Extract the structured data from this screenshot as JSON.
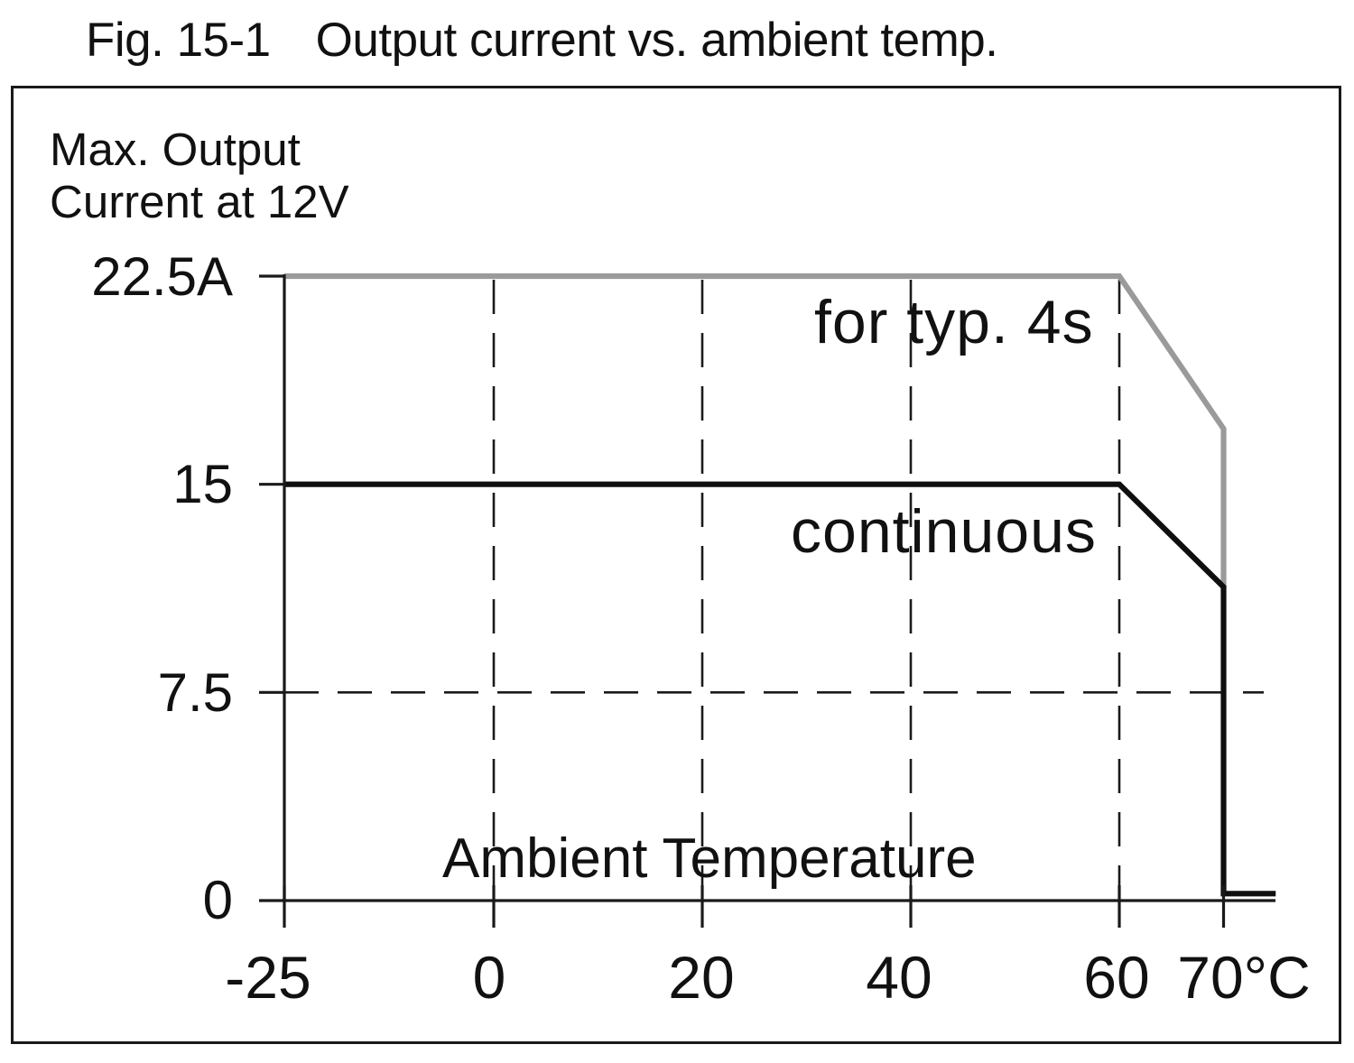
{
  "title": {
    "fig_label": "Fig. 15-1",
    "text": "Output current vs. ambient temp."
  },
  "y_axis": {
    "label_line1": "Max. Output",
    "label_line2": "Current at 12V",
    "tick_labels": [
      "22.5A",
      "15",
      "7.5",
      "0"
    ]
  },
  "x_axis": {
    "label": "Ambient Temperature",
    "tick_labels": [
      "-25",
      "0",
      "20",
      "40",
      "60",
      "70°C"
    ]
  },
  "curve_labels": {
    "peak": "for typ. 4s",
    "continuous": "continuous"
  },
  "colors": {
    "peak_line": "#9a9a9a",
    "continuous_line": "#0f0f0f",
    "axis": "#1a1a1a"
  },
  "chart_data": {
    "type": "line",
    "title": "Fig. 15-1 Output current vs. ambient temp.",
    "xlabel": "Ambient Temperature (°C)",
    "ylabel": "Max. Output Current at 12V (A)",
    "xlim": [
      -25,
      75
    ],
    "ylim": [
      0,
      22.5
    ],
    "x_ticks": [
      -25,
      0,
      20,
      40,
      60,
      70
    ],
    "y_ticks": [
      22.5,
      15,
      7.5,
      0
    ],
    "grid_x_dashed": [
      0,
      20,
      40,
      60
    ],
    "grid_y_dashed": [
      7.5
    ],
    "legend_position": "inline labels",
    "series": [
      {
        "name": "for typ. 4s",
        "color": "#9a9a9a",
        "points": [
          [
            -25,
            22.5
          ],
          [
            60,
            22.5
          ],
          [
            70,
            17
          ],
          [
            70,
            11.3
          ]
        ]
      },
      {
        "name": "continuous",
        "color": "#0f0f0f",
        "points": [
          [
            -25,
            15
          ],
          [
            60,
            15
          ],
          [
            70,
            11.3
          ],
          [
            70,
            0.25
          ],
          [
            75,
            0.25
          ]
        ]
      }
    ]
  }
}
